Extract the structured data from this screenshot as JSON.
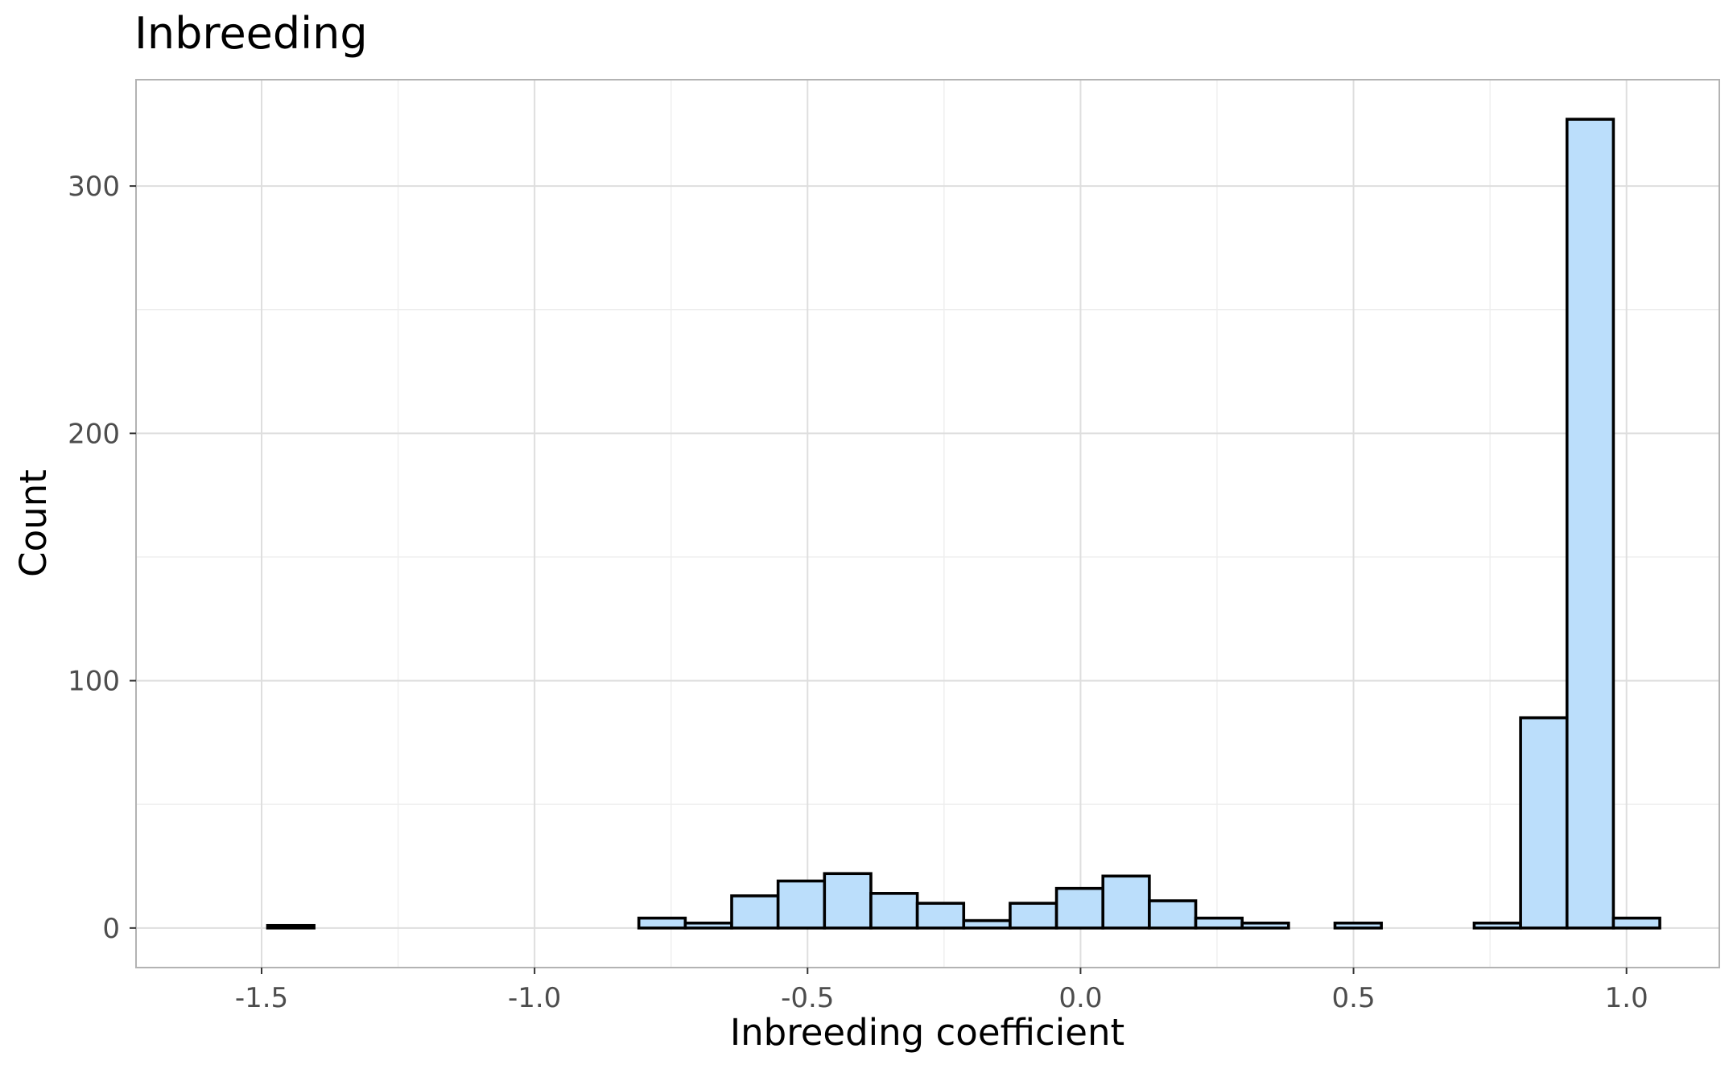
{
  "chart_data": {
    "type": "bar",
    "subtype": "histogram",
    "title": "Inbreeding",
    "xlabel": "Inbreeding coefficient",
    "ylabel": "Count",
    "xlim": [
      -1.73,
      1.17
    ],
    "ylim": [
      -16,
      343
    ],
    "x_ticks": [
      -1.5,
      -1.0,
      -0.5,
      0.0,
      0.5,
      1.0
    ],
    "x_tick_labels": [
      "-1.5",
      "-1.0",
      "-0.5",
      "0.0",
      "0.5",
      "1.0"
    ],
    "y_ticks": [
      0,
      100,
      200,
      300
    ],
    "y_tick_labels": [
      "0",
      "100",
      "200",
      "300"
    ],
    "bin_width": 0.0851,
    "bins": [
      {
        "x0": -1.489,
        "x1": -1.404,
        "count": 1
      },
      {
        "x0": -1.404,
        "x1": -1.319,
        "count": 0
      },
      {
        "x0": -1.319,
        "x1": -1.234,
        "count": 0
      },
      {
        "x0": -1.234,
        "x1": -1.149,
        "count": 0
      },
      {
        "x0": -1.149,
        "x1": -1.064,
        "count": 0
      },
      {
        "x0": -1.064,
        "x1": -0.979,
        "count": 0
      },
      {
        "x0": -0.979,
        "x1": -0.894,
        "count": 0
      },
      {
        "x0": -0.894,
        "x1": -0.809,
        "count": 0
      },
      {
        "x0": -0.809,
        "x1": -0.724,
        "count": 4
      },
      {
        "x0": -0.724,
        "x1": -0.639,
        "count": 2
      },
      {
        "x0": -0.639,
        "x1": -0.554,
        "count": 13
      },
      {
        "x0": -0.554,
        "x1": -0.469,
        "count": 19
      },
      {
        "x0": -0.469,
        "x1": -0.384,
        "count": 22
      },
      {
        "x0": -0.384,
        "x1": -0.299,
        "count": 14
      },
      {
        "x0": -0.299,
        "x1": -0.214,
        "count": 10
      },
      {
        "x0": -0.214,
        "x1": -0.129,
        "count": 3
      },
      {
        "x0": -0.129,
        "x1": -0.044,
        "count": 10
      },
      {
        "x0": -0.044,
        "x1": 0.041,
        "count": 16
      },
      {
        "x0": 0.041,
        "x1": 0.126,
        "count": 21
      },
      {
        "x0": 0.126,
        "x1": 0.211,
        "count": 11
      },
      {
        "x0": 0.211,
        "x1": 0.296,
        "count": 4
      },
      {
        "x0": 0.296,
        "x1": 0.381,
        "count": 2
      },
      {
        "x0": 0.381,
        "x1": 0.466,
        "count": 0
      },
      {
        "x0": 0.466,
        "x1": 0.551,
        "count": 2
      },
      {
        "x0": 0.551,
        "x1": 0.636,
        "count": 0
      },
      {
        "x0": 0.636,
        "x1": 0.721,
        "count": 0
      },
      {
        "x0": 0.721,
        "x1": 0.806,
        "count": 2
      },
      {
        "x0": 0.806,
        "x1": 0.891,
        "count": 85
      },
      {
        "x0": 0.891,
        "x1": 0.976,
        "count": 327
      },
      {
        "x0": 0.976,
        "x1": 1.061,
        "count": 4
      }
    ],
    "grid": true,
    "legend": "none",
    "colors": {
      "bar_fill": "#bbdefb",
      "bar_stroke": "#000000",
      "grid_major": "#dedede",
      "grid_minor": "#eeeeee",
      "panel_border": "#b3b3b3",
      "tick_text": "#4d4d4d",
      "title_text": "#000000"
    }
  }
}
